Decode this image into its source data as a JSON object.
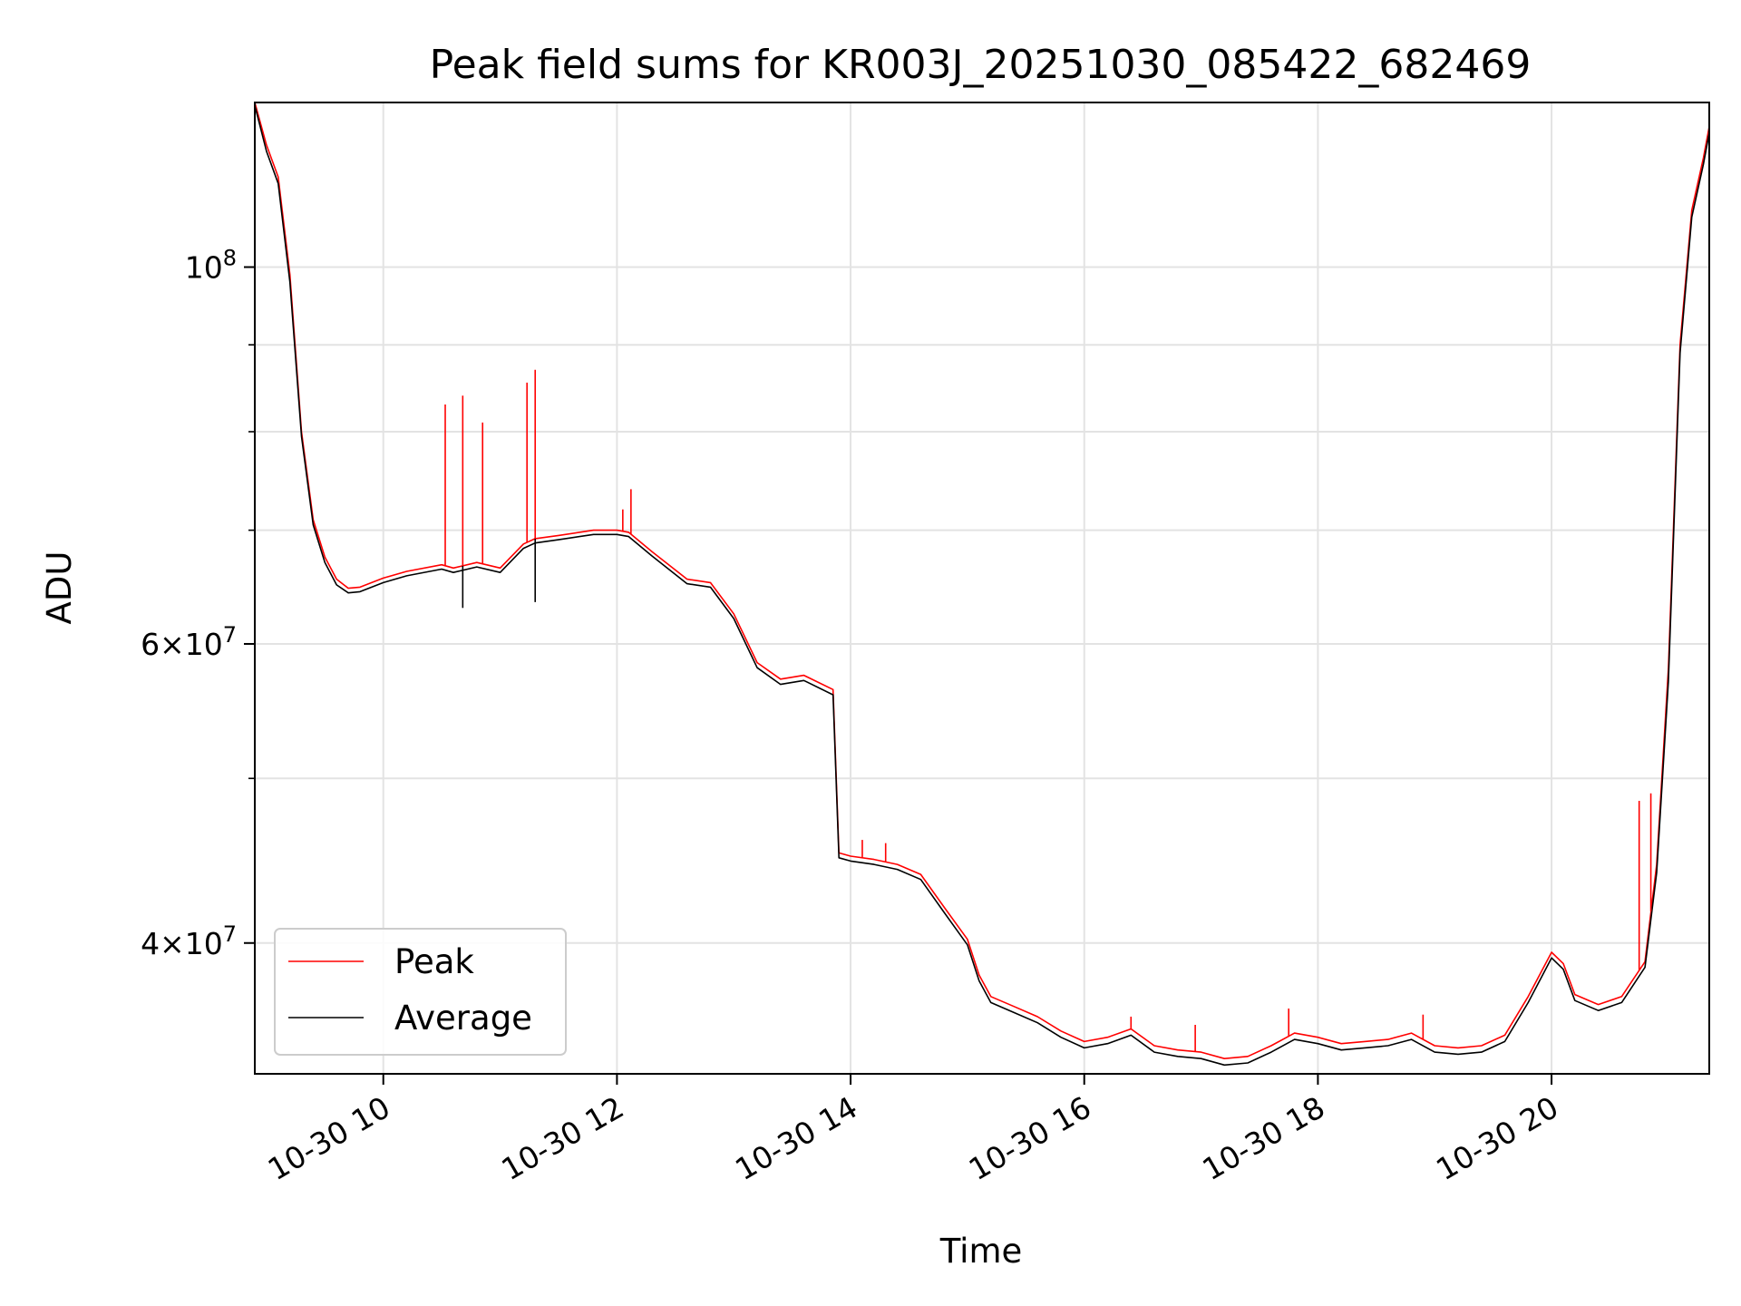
{
  "chart_data": {
    "type": "line",
    "title": "Peak field sums for KR003J_20251030_085422_682469",
    "xlabel": "Time",
    "ylabel": "ADU",
    "yscale": "log",
    "xlim": [
      8.9,
      21.35
    ],
    "ylim": [
      33500000,
      125000000
    ],
    "grid": true,
    "legend_position": "lower-left",
    "x_ticks": [
      {
        "value": 10,
        "label": "10-30 10"
      },
      {
        "value": 12,
        "label": "10-30 12"
      },
      {
        "value": 14,
        "label": "10-30 14"
      },
      {
        "value": 16,
        "label": "10-30 16"
      },
      {
        "value": 18,
        "label": "10-30 18"
      },
      {
        "value": 20,
        "label": "10-30 20"
      }
    ],
    "y_major_ticks": [
      {
        "value": 40000000,
        "base": "4",
        "mult": "×",
        "exp_base": "10",
        "exp": "7"
      },
      {
        "value": 60000000,
        "base": "6",
        "mult": "×",
        "exp_base": "10",
        "exp": "7"
      },
      {
        "value": 100000000,
        "base": "",
        "mult": "",
        "exp_base": "10",
        "exp": "8"
      }
    ],
    "y_minor_ticks": [
      50000000,
      70000000,
      80000000,
      90000000
    ],
    "series": [
      {
        "name": "Peak",
        "color": "#ff0000",
        "x": [
          8.9,
          9.0,
          9.1,
          9.2,
          9.3,
          9.4,
          9.5,
          9.6,
          9.7,
          9.8,
          10.0,
          10.2,
          10.5,
          10.6,
          10.8,
          11.0,
          11.2,
          11.3,
          11.5,
          11.8,
          12.0,
          12.1,
          12.3,
          12.6,
          12.8,
          13.0,
          13.2,
          13.4,
          13.6,
          13.85,
          13.9,
          14.0,
          14.2,
          14.4,
          14.6,
          14.8,
          15.0,
          15.1,
          15.2,
          15.4,
          15.6,
          15.8,
          16.0,
          16.2,
          16.4,
          16.6,
          16.8,
          17.0,
          17.2,
          17.4,
          17.6,
          17.8,
          18.0,
          18.2,
          18.4,
          18.6,
          18.8,
          19.0,
          19.2,
          19.4,
          19.6,
          19.8,
          20.0,
          20.1,
          20.2,
          20.4,
          20.6,
          20.8,
          20.9,
          21.0,
          21.1,
          21.2,
          21.3,
          21.35
        ],
        "y": [
          125000000,
          118000000,
          113000000,
          99000000,
          80000000,
          71000000,
          67500000,
          65500000,
          64700000,
          64800000,
          65600000,
          66200000,
          66800000,
          66500000,
          67000000,
          66500000,
          68700000,
          69200000,
          69500000,
          70000000,
          70000000,
          69800000,
          68000000,
          65500000,
          65200000,
          62500000,
          58500000,
          57200000,
          57500000,
          56400000,
          45200000,
          45000000,
          44800000,
          44500000,
          43900000,
          42000000,
          40200000,
          38300000,
          37200000,
          36700000,
          36200000,
          35500000,
          35000000,
          35200000,
          35600000,
          34800000,
          34600000,
          34500000,
          34200000,
          34300000,
          34800000,
          35400000,
          35200000,
          34900000,
          35000000,
          35100000,
          35400000,
          34800000,
          34700000,
          34800000,
          35300000,
          37200000,
          39500000,
          38900000,
          37300000,
          36800000,
          37200000,
          39000000,
          44500000,
          58000000,
          90000000,
          108000000,
          116000000,
          121000000
        ]
      },
      {
        "name": "Average",
        "color": "#000000",
        "x": [
          8.9,
          9.0,
          9.1,
          9.2,
          9.3,
          9.4,
          9.5,
          9.6,
          9.7,
          9.8,
          10.0,
          10.2,
          10.5,
          10.6,
          10.8,
          11.0,
          11.2,
          11.3,
          11.5,
          11.8,
          12.0,
          12.1,
          12.3,
          12.6,
          12.8,
          13.0,
          13.2,
          13.4,
          13.6,
          13.85,
          13.9,
          14.0,
          14.2,
          14.4,
          14.6,
          14.8,
          15.0,
          15.1,
          15.2,
          15.4,
          15.6,
          15.8,
          16.0,
          16.2,
          16.4,
          16.6,
          16.8,
          17.0,
          17.2,
          17.4,
          17.6,
          17.8,
          18.0,
          18.2,
          18.4,
          18.6,
          18.8,
          19.0,
          19.2,
          19.4,
          19.6,
          19.8,
          20.0,
          20.1,
          20.2,
          20.4,
          20.6,
          20.8,
          20.9,
          21.0,
          21.1,
          21.2,
          21.3,
          21.35
        ],
        "y": [
          124500000,
          117000000,
          112000000,
          98000000,
          79500000,
          70500000,
          67000000,
          65000000,
          64300000,
          64400000,
          65200000,
          65800000,
          66400000,
          66100000,
          66600000,
          66100000,
          68300000,
          68800000,
          69100000,
          69600000,
          69600000,
          69400000,
          67600000,
          65100000,
          64800000,
          62100000,
          58100000,
          56800000,
          57100000,
          56000000,
          44900000,
          44700000,
          44500000,
          44200000,
          43600000,
          41700000,
          39900000,
          38000000,
          36900000,
          36400000,
          35900000,
          35200000,
          34700000,
          34900000,
          35300000,
          34500000,
          34300000,
          34200000,
          33900000,
          34000000,
          34500000,
          35100000,
          34900000,
          34600000,
          34700000,
          34800000,
          35100000,
          34500000,
          34400000,
          34500000,
          35000000,
          36900000,
          39200000,
          38600000,
          37000000,
          36500000,
          36900000,
          38700000,
          44000000,
          57000000,
          89000000,
          107000000,
          115000000,
          120000000
        ]
      }
    ],
    "peak_spikes": [
      {
        "x": 10.53,
        "y": 83000000
      },
      {
        "x": 10.68,
        "y": 84000000
      },
      {
        "x": 10.85,
        "y": 81000000
      },
      {
        "x": 11.23,
        "y": 85500000
      },
      {
        "x": 11.3,
        "y": 87000000
      },
      {
        "x": 12.05,
        "y": 72000000
      },
      {
        "x": 12.12,
        "y": 74000000
      },
      {
        "x": 14.1,
        "y": 46000000
      },
      {
        "x": 14.3,
        "y": 45800000
      },
      {
        "x": 16.4,
        "y": 36200000
      },
      {
        "x": 16.95,
        "y": 35800000
      },
      {
        "x": 17.75,
        "y": 36600000
      },
      {
        "x": 18.9,
        "y": 36300000
      },
      {
        "x": 20.75,
        "y": 48500000
      },
      {
        "x": 20.85,
        "y": 49000000
      }
    ],
    "average_dips": [
      {
        "x": 10.68,
        "y": 63000000
      },
      {
        "x": 11.3,
        "y": 63500000
      }
    ]
  }
}
